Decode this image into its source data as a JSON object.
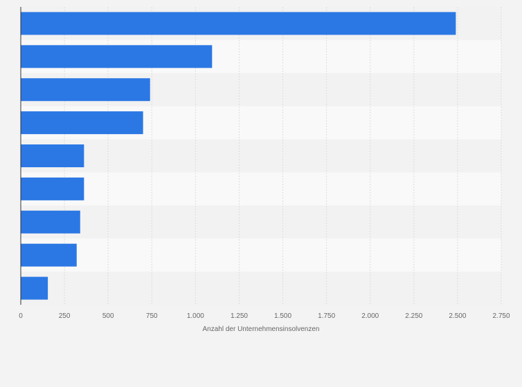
{
  "chart_data": {
    "type": "bar",
    "orientation": "horizontal",
    "categories": [
      "",
      "",
      "",
      "",
      "",
      "",
      "",
      "",
      ""
    ],
    "values": [
      2490,
      1095,
      740,
      700,
      362,
      362,
      340,
      320,
      155
    ],
    "xlabel": "Anzahl der Unternehmensinsolvenzen",
    "ylabel": "",
    "xlim": [
      0,
      2750
    ],
    "xticks": [
      0,
      250,
      500,
      750,
      1000,
      1250,
      1500,
      1750,
      2000,
      2250,
      2500,
      2750
    ],
    "xtick_labels": [
      "0",
      "250",
      "500",
      "750",
      "1.000",
      "1.250",
      "1.500",
      "1.750",
      "2.000",
      "2.250",
      "2.500",
      "2.750"
    ],
    "grid": true,
    "bar_color": "#2b78e4",
    "band_colors": [
      "#f2f2f2",
      "#f9f9f9"
    ]
  }
}
